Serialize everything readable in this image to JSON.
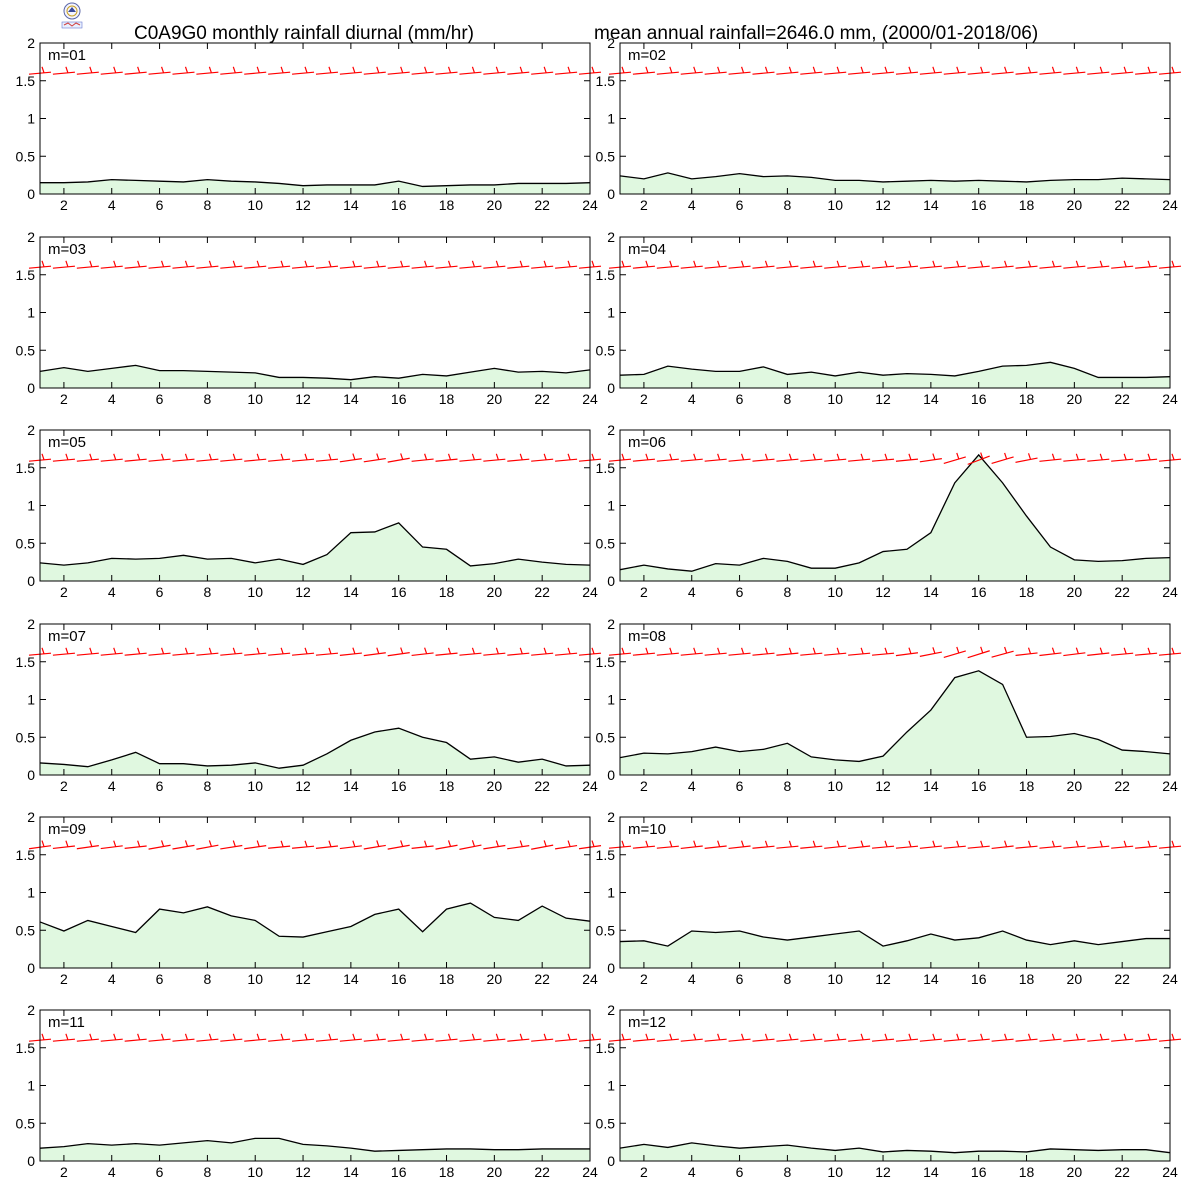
{
  "header": {
    "title_left": "C0A9G0 monthly rainfall diurnal (mm/hr)",
    "title_right": "mean annual rainfall=2646.0 mm, (2000/01-2018/06)"
  },
  "colors": {
    "fill": "#e0f8e0",
    "line": "#000000",
    "wind": "#ff0000"
  },
  "chart_data": [
    {
      "type": "area",
      "panel": "m=01",
      "ylim": [
        0,
        2
      ],
      "xlim": [
        1,
        24
      ],
      "xticks": [
        "2",
        "4",
        "6",
        "8",
        "10",
        "12",
        "14",
        "16",
        "18",
        "20",
        "22",
        "24"
      ],
      "yticks": [
        "0",
        "0.5",
        "1",
        "1.5",
        "2"
      ],
      "x": [
        1,
        2,
        3,
        4,
        5,
        6,
        7,
        8,
        9,
        10,
        11,
        12,
        13,
        14,
        15,
        16,
        17,
        18,
        19,
        20,
        21,
        22,
        23,
        24
      ],
      "values": [
        0.15,
        0.15,
        0.16,
        0.19,
        0.18,
        0.17,
        0.16,
        0.19,
        0.17,
        0.16,
        0.14,
        0.11,
        0.12,
        0.12,
        0.12,
        0.17,
        0.1,
        0.11,
        0.12,
        0.12,
        0.14,
        0.14,
        0.14,
        0.15
      ]
    },
    {
      "type": "area",
      "panel": "m=02",
      "ylim": [
        0,
        2
      ],
      "xlim": [
        1,
        24
      ],
      "xticks": [
        "2",
        "4",
        "6",
        "8",
        "10",
        "12",
        "14",
        "16",
        "18",
        "20",
        "22",
        "24"
      ],
      "yticks": [
        "0",
        "0.5",
        "1",
        "1.5",
        "2"
      ],
      "x": [
        1,
        2,
        3,
        4,
        5,
        6,
        7,
        8,
        9,
        10,
        11,
        12,
        13,
        14,
        15,
        16,
        17,
        18,
        19,
        20,
        21,
        22,
        23,
        24
      ],
      "values": [
        0.24,
        0.2,
        0.28,
        0.2,
        0.23,
        0.27,
        0.23,
        0.24,
        0.22,
        0.18,
        0.18,
        0.16,
        0.17,
        0.18,
        0.17,
        0.18,
        0.17,
        0.16,
        0.18,
        0.19,
        0.19,
        0.21,
        0.2,
        0.19
      ]
    },
    {
      "type": "area",
      "panel": "m=03",
      "ylim": [
        0,
        2
      ],
      "xlim": [
        1,
        24
      ],
      "xticks": [
        "2",
        "4",
        "6",
        "8",
        "10",
        "12",
        "14",
        "16",
        "18",
        "20",
        "22",
        "24"
      ],
      "yticks": [
        "0",
        "0.5",
        "1",
        "1.5",
        "2"
      ],
      "x": [
        1,
        2,
        3,
        4,
        5,
        6,
        7,
        8,
        9,
        10,
        11,
        12,
        13,
        14,
        15,
        16,
        17,
        18,
        19,
        20,
        21,
        22,
        23,
        24
      ],
      "values": [
        0.22,
        0.27,
        0.22,
        0.26,
        0.3,
        0.23,
        0.23,
        0.22,
        0.21,
        0.2,
        0.14,
        0.14,
        0.13,
        0.11,
        0.15,
        0.13,
        0.18,
        0.16,
        0.21,
        0.26,
        0.21,
        0.22,
        0.2,
        0.24
      ]
    },
    {
      "type": "area",
      "panel": "m=04",
      "ylim": [
        0,
        2
      ],
      "xlim": [
        1,
        24
      ],
      "xticks": [
        "2",
        "4",
        "6",
        "8",
        "10",
        "12",
        "14",
        "16",
        "18",
        "20",
        "22",
        "24"
      ],
      "yticks": [
        "0",
        "0.5",
        "1",
        "1.5",
        "2"
      ],
      "x": [
        1,
        2,
        3,
        4,
        5,
        6,
        7,
        8,
        9,
        10,
        11,
        12,
        13,
        14,
        15,
        16,
        17,
        18,
        19,
        20,
        21,
        22,
        23,
        24
      ],
      "values": [
        0.17,
        0.18,
        0.29,
        0.25,
        0.22,
        0.22,
        0.28,
        0.18,
        0.21,
        0.16,
        0.21,
        0.17,
        0.19,
        0.18,
        0.16,
        0.22,
        0.29,
        0.3,
        0.34,
        0.26,
        0.14,
        0.14,
        0.14,
        0.15
      ]
    },
    {
      "type": "area",
      "panel": "m=05",
      "ylim": [
        0,
        2
      ],
      "xlim": [
        1,
        24
      ],
      "xticks": [
        "2",
        "4",
        "6",
        "8",
        "10",
        "12",
        "14",
        "16",
        "18",
        "20",
        "22",
        "24"
      ],
      "yticks": [
        "0",
        "0.5",
        "1",
        "1.5",
        "2"
      ],
      "x": [
        1,
        2,
        3,
        4,
        5,
        6,
        7,
        8,
        9,
        10,
        11,
        12,
        13,
        14,
        15,
        16,
        17,
        18,
        19,
        20,
        21,
        22,
        23,
        24
      ],
      "values": [
        0.24,
        0.21,
        0.24,
        0.3,
        0.29,
        0.3,
        0.34,
        0.29,
        0.3,
        0.24,
        0.29,
        0.22,
        0.35,
        0.64,
        0.65,
        0.77,
        0.45,
        0.42,
        0.2,
        0.23,
        0.29,
        0.25,
        0.22,
        0.21
      ]
    },
    {
      "type": "area",
      "panel": "m=06",
      "ylim": [
        0,
        2
      ],
      "xlim": [
        1,
        24
      ],
      "xticks": [
        "2",
        "4",
        "6",
        "8",
        "10",
        "12",
        "14",
        "16",
        "18",
        "20",
        "22",
        "24"
      ],
      "yticks": [
        "0",
        "0.5",
        "1",
        "1.5",
        "2"
      ],
      "x": [
        1,
        2,
        3,
        4,
        5,
        6,
        7,
        8,
        9,
        10,
        11,
        12,
        13,
        14,
        15,
        16,
        17,
        18,
        19,
        20,
        21,
        22,
        23,
        24
      ],
      "values": [
        0.15,
        0.21,
        0.16,
        0.13,
        0.23,
        0.21,
        0.3,
        0.26,
        0.17,
        0.17,
        0.24,
        0.39,
        0.42,
        0.64,
        1.3,
        1.67,
        1.3,
        0.86,
        0.45,
        0.28,
        0.26,
        0.27,
        0.3,
        0.31
      ]
    },
    {
      "type": "area",
      "panel": "m=07",
      "ylim": [
        0,
        2
      ],
      "xlim": [
        1,
        24
      ],
      "xticks": [
        "2",
        "4",
        "6",
        "8",
        "10",
        "12",
        "14",
        "16",
        "18",
        "20",
        "22",
        "24"
      ],
      "yticks": [
        "0",
        "0.5",
        "1",
        "1.5",
        "2"
      ],
      "x": [
        1,
        2,
        3,
        4,
        5,
        6,
        7,
        8,
        9,
        10,
        11,
        12,
        13,
        14,
        15,
        16,
        17,
        18,
        19,
        20,
        21,
        22,
        23,
        24
      ],
      "values": [
        0.16,
        0.14,
        0.11,
        0.2,
        0.3,
        0.15,
        0.15,
        0.12,
        0.13,
        0.16,
        0.09,
        0.13,
        0.28,
        0.46,
        0.57,
        0.62,
        0.5,
        0.43,
        0.21,
        0.24,
        0.17,
        0.21,
        0.12,
        0.13
      ]
    },
    {
      "type": "area",
      "panel": "m=08",
      "ylim": [
        0,
        2
      ],
      "xlim": [
        1,
        24
      ],
      "xticks": [
        "2",
        "4",
        "6",
        "8",
        "10",
        "12",
        "14",
        "16",
        "18",
        "20",
        "22",
        "24"
      ],
      "yticks": [
        "0",
        "0.5",
        "1",
        "1.5",
        "2"
      ],
      "x": [
        1,
        2,
        3,
        4,
        5,
        6,
        7,
        8,
        9,
        10,
        11,
        12,
        13,
        14,
        15,
        16,
        17,
        18,
        19,
        20,
        21,
        22,
        23,
        24
      ],
      "values": [
        0.23,
        0.29,
        0.28,
        0.31,
        0.37,
        0.31,
        0.34,
        0.42,
        0.24,
        0.2,
        0.18,
        0.25,
        0.57,
        0.86,
        1.29,
        1.38,
        1.2,
        0.5,
        0.51,
        0.55,
        0.47,
        0.33,
        0.31,
        0.28
      ]
    },
    {
      "type": "area",
      "panel": "m=09",
      "ylim": [
        0,
        2
      ],
      "xlim": [
        1,
        24
      ],
      "xticks": [
        "2",
        "4",
        "6",
        "8",
        "10",
        "12",
        "14",
        "16",
        "18",
        "20",
        "22",
        "24"
      ],
      "yticks": [
        "0",
        "0.5",
        "1",
        "1.5",
        "2"
      ],
      "x": [
        1,
        2,
        3,
        4,
        5,
        6,
        7,
        8,
        9,
        10,
        11,
        12,
        13,
        14,
        15,
        16,
        17,
        18,
        19,
        20,
        21,
        22,
        23,
        24
      ],
      "values": [
        0.61,
        0.49,
        0.63,
        0.55,
        0.47,
        0.78,
        0.73,
        0.81,
        0.69,
        0.63,
        0.42,
        0.41,
        0.48,
        0.55,
        0.71,
        0.78,
        0.48,
        0.78,
        0.86,
        0.67,
        0.63,
        0.82,
        0.66,
        0.62
      ]
    },
    {
      "type": "area",
      "panel": "m=10",
      "ylim": [
        0,
        2
      ],
      "xlim": [
        1,
        24
      ],
      "xticks": [
        "2",
        "4",
        "6",
        "8",
        "10",
        "12",
        "14",
        "16",
        "18",
        "20",
        "22",
        "24"
      ],
      "yticks": [
        "0",
        "0.5",
        "1",
        "1.5",
        "2"
      ],
      "x": [
        1,
        2,
        3,
        4,
        5,
        6,
        7,
        8,
        9,
        10,
        11,
        12,
        13,
        14,
        15,
        16,
        17,
        18,
        19,
        20,
        21,
        22,
        23,
        24
      ],
      "values": [
        0.35,
        0.36,
        0.29,
        0.49,
        0.47,
        0.49,
        0.41,
        0.37,
        0.41,
        0.45,
        0.49,
        0.29,
        0.36,
        0.45,
        0.37,
        0.4,
        0.49,
        0.37,
        0.31,
        0.36,
        0.31,
        0.35,
        0.39,
        0.39
      ]
    },
    {
      "type": "area",
      "panel": "m=11",
      "ylim": [
        0,
        2
      ],
      "xlim": [
        1,
        24
      ],
      "xticks": [
        "2",
        "4",
        "6",
        "8",
        "10",
        "12",
        "14",
        "16",
        "18",
        "20",
        "22",
        "24"
      ],
      "yticks": [
        "0",
        "0.5",
        "1",
        "1.5",
        "2"
      ],
      "x": [
        1,
        2,
        3,
        4,
        5,
        6,
        7,
        8,
        9,
        10,
        11,
        12,
        13,
        14,
        15,
        16,
        17,
        18,
        19,
        20,
        21,
        22,
        23,
        24
      ],
      "values": [
        0.17,
        0.19,
        0.23,
        0.21,
        0.23,
        0.21,
        0.24,
        0.27,
        0.24,
        0.3,
        0.3,
        0.22,
        0.2,
        0.17,
        0.13,
        0.14,
        0.15,
        0.16,
        0.16,
        0.15,
        0.15,
        0.16,
        0.16,
        0.16
      ]
    },
    {
      "type": "area",
      "panel": "m=12",
      "ylim": [
        0,
        2
      ],
      "xlim": [
        1,
        24
      ],
      "xticks": [
        "2",
        "4",
        "6",
        "8",
        "10",
        "12",
        "14",
        "16",
        "18",
        "20",
        "22",
        "24"
      ],
      "yticks": [
        "0",
        "0.5",
        "1",
        "1.5",
        "2"
      ],
      "x": [
        1,
        2,
        3,
        4,
        5,
        6,
        7,
        8,
        9,
        10,
        11,
        12,
        13,
        14,
        15,
        16,
        17,
        18,
        19,
        20,
        21,
        22,
        23,
        24
      ],
      "values": [
        0.17,
        0.22,
        0.18,
        0.24,
        0.2,
        0.17,
        0.19,
        0.21,
        0.17,
        0.14,
        0.17,
        0.12,
        0.14,
        0.13,
        0.11,
        0.13,
        0.13,
        0.12,
        0.16,
        0.15,
        0.14,
        0.15,
        0.15,
        0.11
      ]
    }
  ]
}
